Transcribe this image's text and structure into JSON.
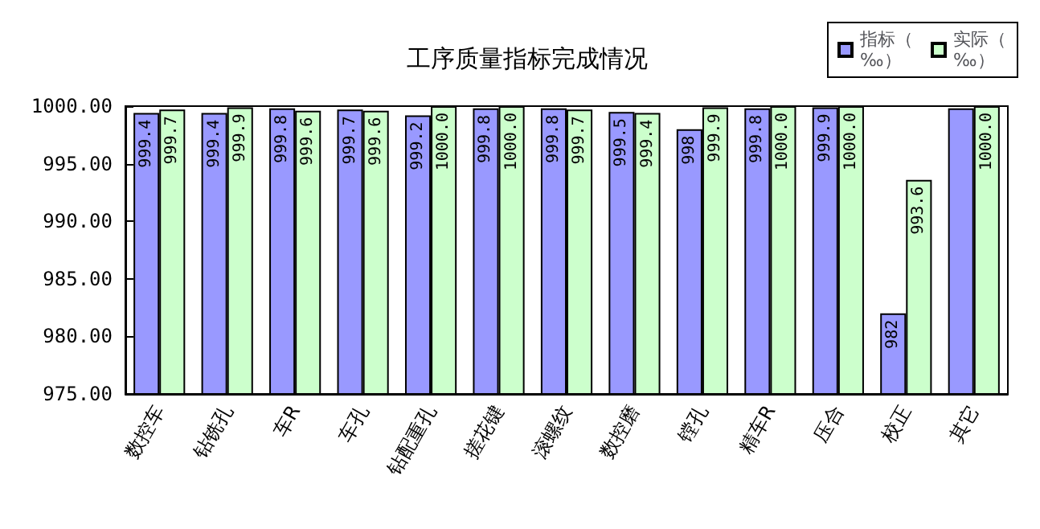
{
  "chart_data": {
    "type": "bar",
    "title": "工序质量指标完成情况",
    "categories": [
      "数控车",
      "钻铣孔",
      "车R",
      "车孔",
      "钻配重孔",
      "搓花键",
      "滚螺纹",
      "数控磨",
      "镗孔",
      "精车R",
      "压合",
      "校正",
      "其它"
    ],
    "series": [
      {
        "name": "指标（‰）",
        "color": "#9999ff",
        "values": [
          999.4,
          999.4,
          999.8,
          999.7,
          999.2,
          999.8,
          999.8,
          999.5,
          998,
          999.8,
          999.9,
          982,
          999.8
        ],
        "value_labels": [
          "999.4",
          "999.4",
          "999.8",
          "999.7",
          "999.2",
          "999.8",
          "999.8",
          "999.5",
          "998",
          "999.8",
          "999.9",
          "982",
          null
        ]
      },
      {
        "name": "实际（‰）",
        "color": "#ccffcc",
        "values": [
          999.7,
          999.9,
          999.6,
          999.6,
          1000.0,
          1000.0,
          999.7,
          999.4,
          999.9,
          1000.0,
          1000.0,
          993.6,
          1000.0
        ],
        "value_labels": [
          "999.7",
          "999.9",
          "999.6",
          "999.6",
          "1000.0",
          "1000.0",
          "999.7",
          "999.4",
          "999.9",
          "1000.0",
          "1000.0",
          "993.6",
          "1000.0"
        ]
      }
    ],
    "ylim": [
      975,
      1000
    ],
    "yticks": [
      {
        "value": 975,
        "label": "975.00"
      },
      {
        "value": 980,
        "label": "980.00"
      },
      {
        "value": 985,
        "label": "985.00"
      },
      {
        "value": 990,
        "label": "990.00"
      },
      {
        "value": 995,
        "label": "995.00"
      },
      {
        "value": 1000,
        "label": "1000.00"
      }
    ],
    "grid": false,
    "legend": "top right"
  }
}
